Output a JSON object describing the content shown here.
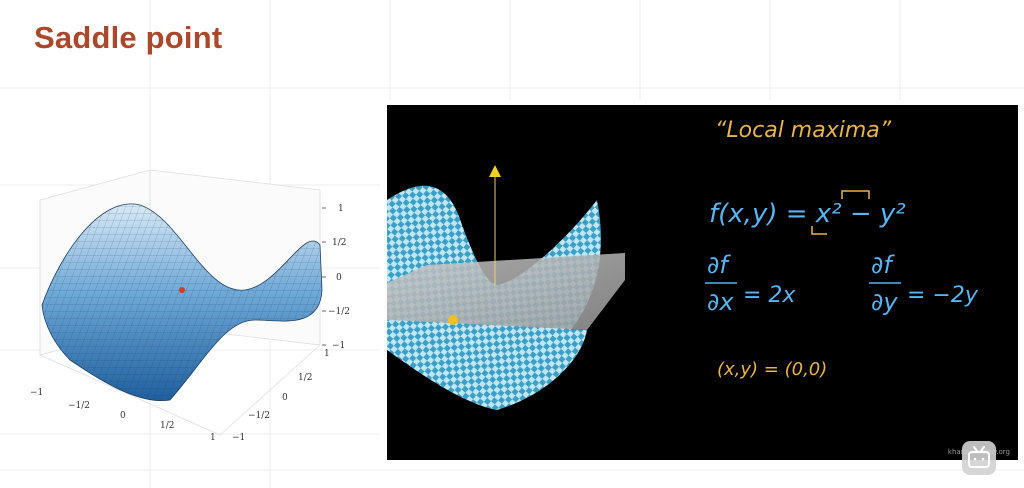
{
  "slide": {
    "title": "Saddle point"
  },
  "left_plot": {
    "z_ticks": [
      "1",
      "1/2",
      "0",
      "−1/2",
      "−1"
    ],
    "x_ticks": [
      "−1",
      "−1/2",
      "0",
      "1/2",
      "1"
    ],
    "y_ticks": [
      "1",
      "1/2",
      "0",
      "−1/2",
      "−1"
    ],
    "surface_color": "#4a90c8",
    "marker_color": "#d23c2a"
  },
  "video": {
    "heading": "“Local maxima”",
    "function_eq": "f(x,y) = x² − y²",
    "df_top": "∂f",
    "dfdx_bottom": "∂x",
    "dfdx_value": "= 2x",
    "df_top_2": "∂f",
    "dfdy_bottom": "∂y",
    "dfdy_value": "= −2y",
    "point_eq": "(x,y) = (0,0)",
    "watermark": "khanacademy.org",
    "blue_ink": "#5ab4f0",
    "yellow_ink": "#e6b450"
  }
}
